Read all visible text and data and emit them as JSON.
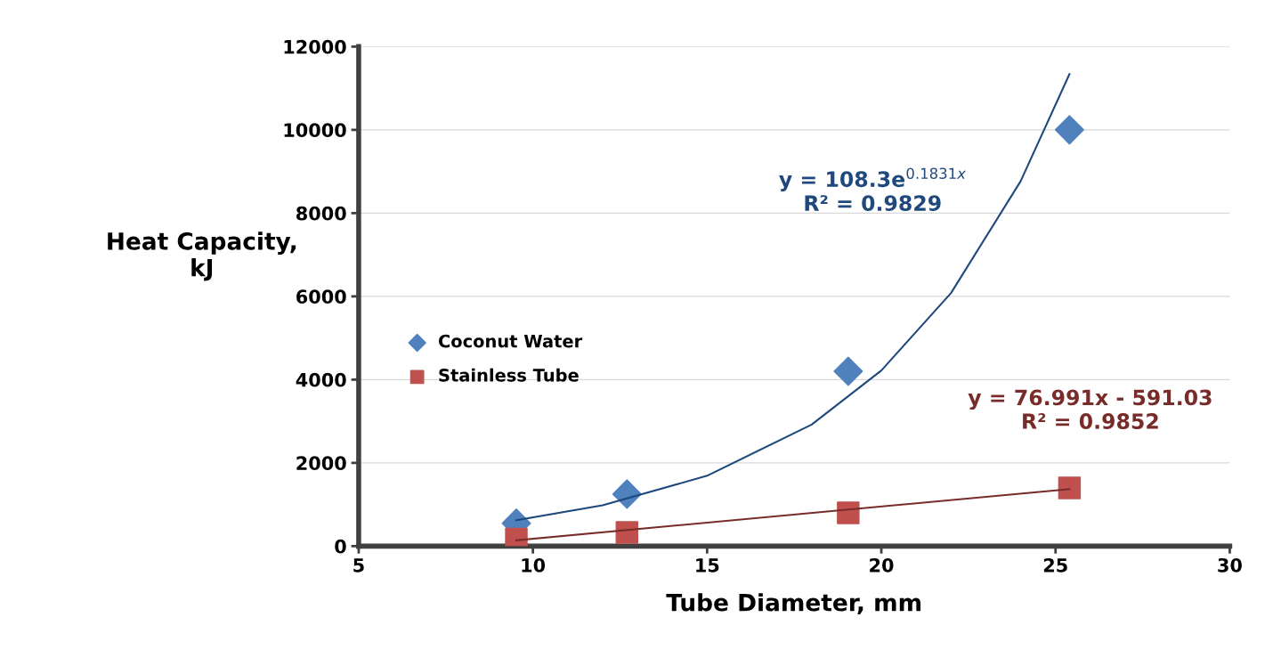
{
  "chart_data": {
    "type": "scatter",
    "xlabel": "Tube Diameter, mm",
    "ylabel": "Heat Capacity,\nkJ",
    "xlim": [
      5,
      30
    ],
    "xticks": [
      5,
      10,
      15,
      20,
      25,
      30
    ],
    "ylim": [
      0,
      12000
    ],
    "yticks": [
      0,
      2000,
      4000,
      6000,
      8000,
      10000,
      12000
    ],
    "grid": "y",
    "legend": "left",
    "series": [
      {
        "name": "Coconut Water",
        "marker": "diamond",
        "color": "#4f81bd",
        "x": [
          9.525,
          12.7,
          19.05,
          25.4
        ],
        "values": [
          550,
          1250,
          4200,
          10000
        ]
      },
      {
        "name": "Stainless Tube",
        "marker": "square",
        "color": "#c0504d",
        "x": [
          9.525,
          12.7,
          19.05,
          25.4
        ],
        "values": [
          170,
          330,
          800,
          1400
        ]
      },
      {
        "type": "line",
        "marker": "none",
        "color": "#1f497d",
        "x": [
          9.525,
          12,
          15,
          18,
          20,
          22,
          24,
          25.4
        ],
        "values": [
          620,
          980,
          1690,
          2920,
          4220,
          6080,
          8770,
          11340
        ]
      },
      {
        "type": "line",
        "marker": "none",
        "color": "#772c2a",
        "x": [
          9.525,
          25.4
        ],
        "values": [
          140,
          1370
        ]
      }
    ],
    "annotations": [
      "y = 108.3e$^{0.1831x}$\nR² = 0.9829",
      "y = 76.991x - 591.03\nR² = 0.9852"
    ]
  }
}
